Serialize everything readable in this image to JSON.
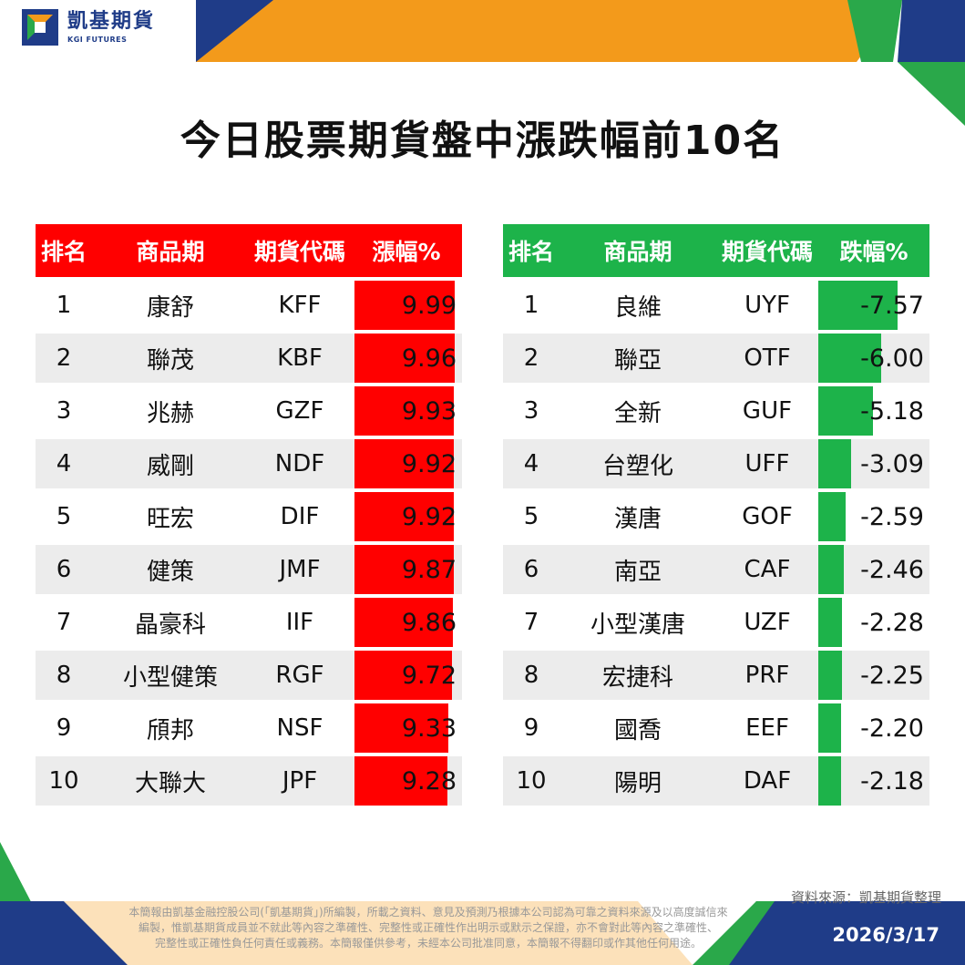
{
  "brand": {
    "name_cn": "凱基期貨",
    "name_en": "KGI FUTURES"
  },
  "title": "今日股票期貨盤中漲跌幅前10名",
  "colors": {
    "up": "#ff0000",
    "down": "#1db34a",
    "brand_blue": "#1f3c88",
    "brand_orange": "#f39a1b"
  },
  "gainers": {
    "headers": [
      "排名",
      "商品期",
      "期貨代碼",
      "漲幅%"
    ],
    "rows": [
      {
        "rank": "1",
        "name": "康舒",
        "code": "KFF",
        "pct": "9.99"
      },
      {
        "rank": "2",
        "name": "聯茂",
        "code": "KBF",
        "pct": "9.96"
      },
      {
        "rank": "3",
        "name": "兆赫",
        "code": "GZF",
        "pct": "9.93"
      },
      {
        "rank": "4",
        "name": "威剛",
        "code": "NDF",
        "pct": "9.92"
      },
      {
        "rank": "5",
        "name": "旺宏",
        "code": "DIF",
        "pct": "9.92"
      },
      {
        "rank": "6",
        "name": "健策",
        "code": "JMF",
        "pct": "9.87"
      },
      {
        "rank": "7",
        "name": "晶豪科",
        "code": "IIF",
        "pct": "9.86"
      },
      {
        "rank": "8",
        "name": "小型健策",
        "code": "RGF",
        "pct": "9.72"
      },
      {
        "rank": "9",
        "name": "頎邦",
        "code": "NSF",
        "pct": "9.33"
      },
      {
        "rank": "10",
        "name": "大聯大",
        "code": "JPF",
        "pct": "9.28"
      }
    ]
  },
  "losers": {
    "headers": [
      "排名",
      "商品期",
      "期貨代碼",
      "跌幅%"
    ],
    "rows": [
      {
        "rank": "1",
        "name": "良維",
        "code": "UYF",
        "pct": "-7.57"
      },
      {
        "rank": "2",
        "name": "聯亞",
        "code": "OTF",
        "pct": "-6.00"
      },
      {
        "rank": "3",
        "name": "全新",
        "code": "GUF",
        "pct": "-5.18"
      },
      {
        "rank": "4",
        "name": "台塑化",
        "code": "UFF",
        "pct": "-3.09"
      },
      {
        "rank": "5",
        "name": "漢唐",
        "code": "GOF",
        "pct": "-2.59"
      },
      {
        "rank": "6",
        "name": "南亞",
        "code": "CAF",
        "pct": "-2.46"
      },
      {
        "rank": "7",
        "name": "小型漢唐",
        "code": "UZF",
        "pct": "-2.28"
      },
      {
        "rank": "8",
        "name": "宏捷科",
        "code": "PRF",
        "pct": "-2.25"
      },
      {
        "rank": "9",
        "name": "國喬",
        "code": "EEF",
        "pct": "-2.20"
      },
      {
        "rank": "10",
        "name": "陽明",
        "code": "DAF",
        "pct": "-2.18"
      }
    ]
  },
  "source": "資料來源：凱基期貨整理",
  "disclaimer": [
    "本簡報由凱基金融控股公司(「凱基期貨」)所編製，所載之資料、意見及預測乃根據本公司認為可靠之資料來源及以高度誠信來",
    "編製，惟凱基期貨成員並不就此等內容之準確性、完整性或正確性作出明示或默示之保證，亦不會對此等內容之準確性、",
    "完整性或正確性負任何責任或義務。本簡報僅供參考，未經本公司批准同意，本簡報不得翻印或作其他任何用途。"
  ],
  "date": "2026/3/17"
}
